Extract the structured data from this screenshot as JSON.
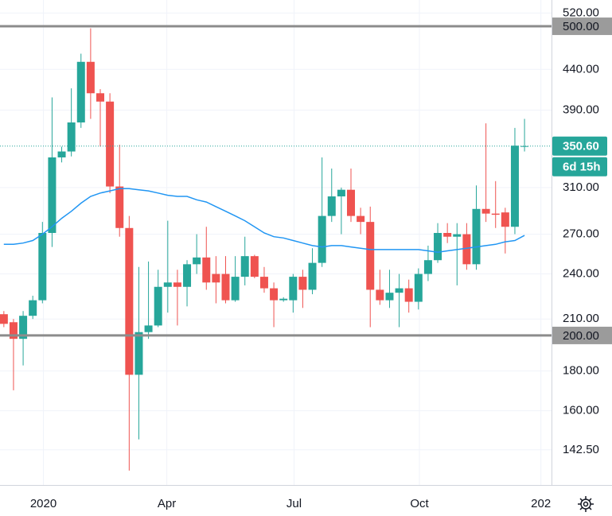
{
  "chart_data": {
    "type": "candlestick",
    "log_scale": true,
    "grid": true,
    "up_color": "#26a69a",
    "down_color": "#ef5350",
    "x": [
      0,
      1,
      2,
      3,
      4,
      5,
      6,
      7,
      8,
      9,
      10,
      11,
      12,
      13,
      14,
      15,
      16,
      17,
      18,
      19,
      20,
      21,
      22,
      23,
      24,
      25,
      26,
      27,
      28,
      29,
      30,
      31,
      32,
      33,
      34,
      35,
      36,
      37,
      38,
      39,
      40,
      41,
      42,
      43,
      44,
      45,
      46,
      47,
      48,
      49,
      50,
      51,
      52,
      53,
      54
    ],
    "open": [
      213,
      208,
      198,
      212,
      222,
      271,
      339,
      345,
      376,
      450,
      410,
      400,
      311,
      275,
      178,
      202,
      206,
      231,
      234,
      231,
      247,
      252,
      240,
      240,
      222,
      238,
      253,
      238,
      230,
      222,
      222,
      238,
      229,
      248,
      285,
      302,
      308,
      285,
      280,
      229,
      222,
      227,
      230,
      221,
      240,
      250,
      271,
      268,
      270,
      247,
      291,
      287,
      288,
      276,
      350
    ],
    "high": [
      215,
      210,
      215,
      225,
      280,
      405,
      350,
      416,
      461,
      497,
      415,
      410,
      352,
      285,
      245,
      249,
      243,
      281,
      243,
      250,
      270,
      276,
      253,
      253,
      253,
      268,
      254,
      245,
      234,
      224,
      240,
      243,
      259,
      339,
      328,
      310,
      328,
      292,
      293,
      243,
      243,
      240,
      236,
      244,
      261,
      279,
      279,
      279,
      279,
      312,
      375,
      316,
      292,
      370,
      380
    ],
    "low": [
      205,
      170,
      183,
      210,
      220,
      260,
      334,
      340,
      370,
      380,
      350,
      305,
      268,
      134,
      147,
      198,
      205,
      214,
      206,
      218,
      240,
      229,
      220,
      220,
      221,
      232,
      237,
      227,
      205,
      221,
      214,
      217,
      226,
      245,
      280,
      270,
      280,
      270,
      205,
      219,
      217,
      205,
      214,
      216,
      235,
      248,
      263,
      232,
      243,
      243,
      280,
      275,
      255,
      270,
      345
    ],
    "close": [
      207,
      198,
      212,
      222,
      271,
      339,
      345,
      376,
      450,
      410,
      400,
      311,
      275,
      178,
      202,
      206,
      231,
      234,
      231,
      247,
      252,
      234,
      234,
      222,
      238,
      253,
      238,
      230,
      222,
      223,
      238,
      229,
      248,
      285,
      302,
      308,
      285,
      280,
      229,
      222,
      227,
      230,
      221,
      240,
      250,
      271,
      268,
      270,
      247,
      291,
      287,
      286,
      276,
      351,
      350.6
    ],
    "ma": {
      "color": "#2196f3",
      "values": [
        262,
        262,
        263,
        265,
        270,
        276,
        283,
        289,
        296,
        302,
        305,
        307,
        309,
        309,
        308,
        307,
        305,
        303,
        302,
        302,
        299,
        297,
        293,
        289,
        285,
        281,
        276,
        271,
        268,
        267,
        265,
        263,
        261,
        260,
        261,
        261,
        260,
        259,
        258,
        258,
        258,
        258,
        258,
        258,
        257,
        256,
        257,
        258,
        259,
        260,
        261,
        262,
        264,
        265,
        269
      ]
    },
    "xlim": [
      -0.4,
      56.8
    ],
    "xticks": [
      {
        "value": 4.1,
        "label": "2020"
      },
      {
        "value": 16.9,
        "label": "Apr"
      },
      {
        "value": 30.1,
        "label": "Jul"
      },
      {
        "value": 43.1,
        "label": "Oct"
      },
      {
        "value": 55.7,
        "label": "202"
      }
    ],
    "ylim": [
      128.4,
      540.5
    ],
    "yticks": [
      {
        "value": 520,
        "label": "520.00"
      },
      {
        "value": 440,
        "label": "440.00"
      },
      {
        "value": 390,
        "label": "390.00"
      },
      {
        "value": 310,
        "label": "310.00"
      },
      {
        "value": 270,
        "label": "270.00"
      },
      {
        "value": 240,
        "label": "240.00"
      },
      {
        "value": 210,
        "label": "210.00"
      },
      {
        "value": 180,
        "label": "180.00"
      },
      {
        "value": 160,
        "label": "160.00"
      },
      {
        "value": 142.5,
        "label": "142.50"
      }
    ],
    "hlines": [
      {
        "value": 500,
        "label": "500.00"
      },
      {
        "value": 200,
        "label": "200.00"
      }
    ],
    "last": {
      "value": 350.6,
      "label": "350.60"
    },
    "countdown": "6d 15h"
  }
}
